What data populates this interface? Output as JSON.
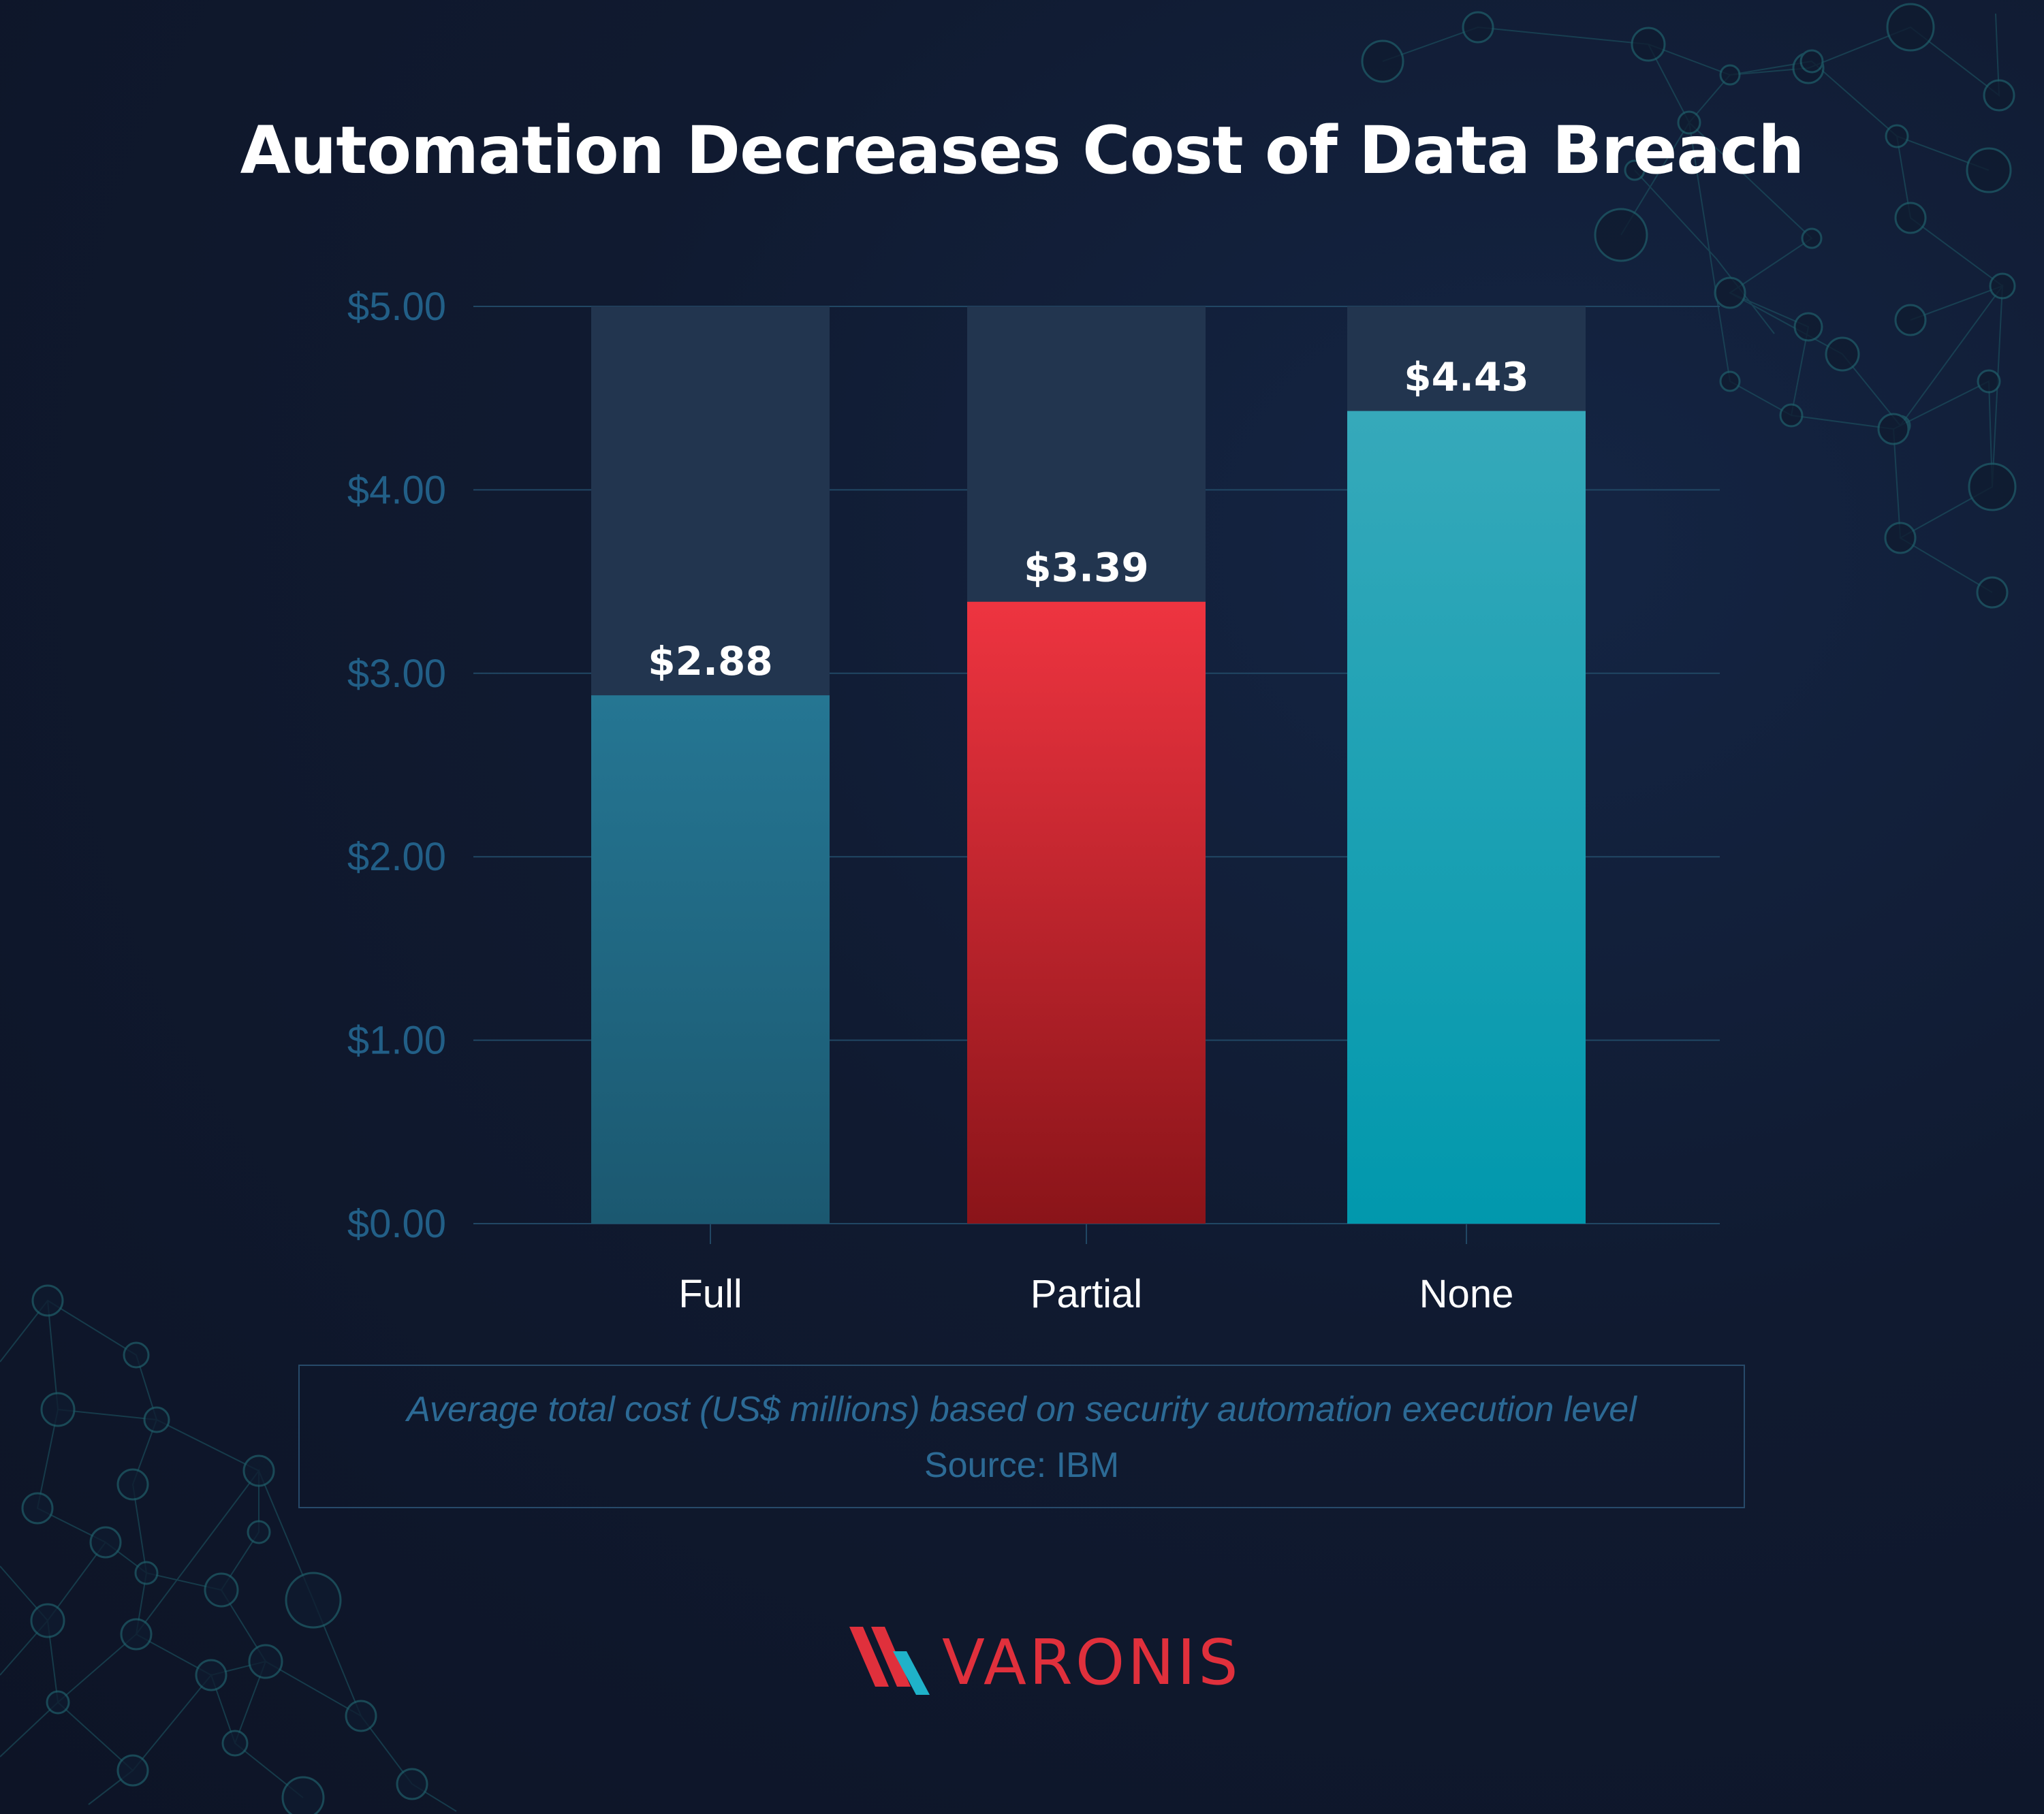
{
  "title": "Automation Decreases Cost of Data Breach",
  "chart_data": {
    "type": "bar",
    "categories": [
      "Full",
      "Partial",
      "None"
    ],
    "values": [
      2.88,
      3.39,
      4.43
    ],
    "value_labels": [
      "$2.88",
      "$3.39",
      "$4.43"
    ],
    "ylim": [
      0,
      5
    ],
    "y_ticks": [
      0,
      1,
      2,
      3,
      4,
      5
    ],
    "y_tick_labels": [
      "$0.00",
      "$1.00",
      "$2.00",
      "$3.00",
      "$4.00",
      "$5.00"
    ],
    "grid": true,
    "legend": "none",
    "bar_colors": [
      [
        "#257693",
        "#1b5870"
      ],
      [
        "#ee3440",
        "#8a1419"
      ],
      [
        "#36a9ba",
        "#0198ad"
      ]
    ],
    "bar_track_color": "#22354f",
    "grid_color": "#214764",
    "tick_label_color": "#225f87",
    "category_label_color": "#ffffff",
    "value_label_color": "#ffffff"
  },
  "caption": "Average total cost (US$ millions) based on security automation execution level",
  "source": "Source: IBM",
  "logo": {
    "icon": "varonis-logo-mark-icon",
    "text": "VARONIS",
    "colors": {
      "red": "#e0303c",
      "blue": "#1fb2c9"
    }
  }
}
